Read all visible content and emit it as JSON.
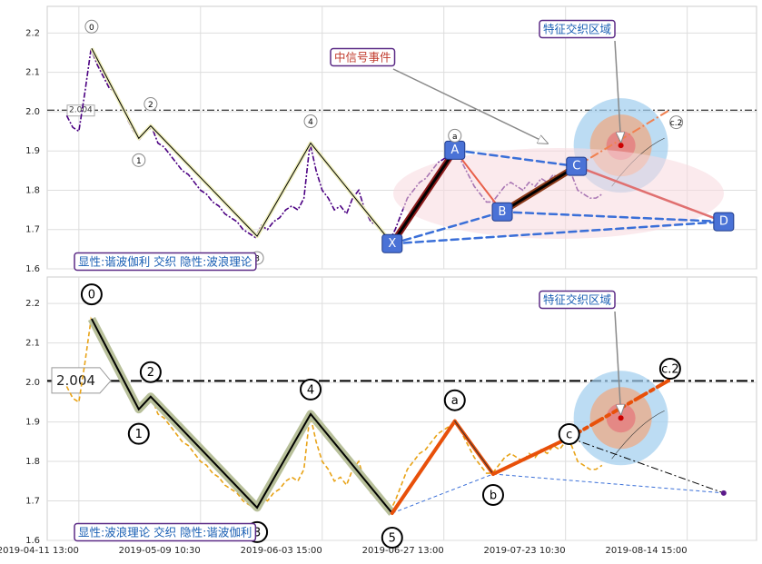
{
  "chart_data": [
    {
      "type": "line",
      "xlim": [
        -5.2,
        111.4
      ],
      "ylim": [
        1.6,
        2.268
      ],
      "yticks": [
        1.6,
        1.7,
        1.8,
        1.9,
        {
          "value": 2,
          "label": "2.0"
        },
        2.1,
        2.2
      ],
      "grid": true,
      "reference_line": {
        "value": 2.004,
        "label": "2.004"
      },
      "series": [
        {
          "color": "#4b0082",
          "x": [
            -2,
            -1,
            0,
            1,
            2,
            3,
            4,
            5,
            6,
            7,
            8,
            9,
            10,
            11,
            12,
            13,
            14,
            15,
            16,
            17,
            18,
            19,
            20,
            21,
            22,
            23,
            24,
            25,
            26,
            27,
            28,
            29,
            30,
            31,
            32,
            33,
            34,
            35,
            36,
            37,
            38,
            39,
            40,
            41,
            42,
            43,
            44,
            45,
            46,
            47,
            48,
            49,
            50,
            51,
            52,
            53,
            54,
            55,
            56,
            57,
            58,
            59,
            60,
            61,
            62,
            63,
            64,
            65,
            66,
            67,
            68,
            69,
            70,
            71,
            72,
            73,
            74,
            75,
            76,
            77,
            78,
            79,
            80,
            81,
            82,
            83,
            84,
            85,
            86
          ],
          "values": [
            1.99,
            1.96,
            1.95,
            2.05,
            2.16,
            2.12,
            2.09,
            2.06,
            2.05,
            2.02,
            1.98,
            1.95,
            1.93,
            1.95,
            1.96,
            1.92,
            1.91,
            1.89,
            1.87,
            1.85,
            1.84,
            1.82,
            1.8,
            1.79,
            1.77,
            1.76,
            1.74,
            1.73,
            1.72,
            1.7,
            1.69,
            1.68,
            1.71,
            1.7,
            1.72,
            1.73,
            1.75,
            1.76,
            1.75,
            1.78,
            1.92,
            1.85,
            1.8,
            1.78,
            1.75,
            1.76,
            1.74,
            1.78,
            1.8,
            1.75,
            1.72,
            1.71,
            1.69,
            1.67,
            1.7,
            1.74,
            1.78,
            1.8,
            1.82,
            1.83,
            1.85,
            1.87,
            1.88,
            1.89,
            1.9,
            1.87,
            1.84,
            1.81,
            1.79,
            1.77,
            1.77,
            1.79,
            1.81,
            1.82,
            1.81,
            1.8,
            1.82,
            1.81,
            1.83,
            1.82,
            1.84,
            1.83,
            1.85,
            1.84,
            1.8,
            1.79,
            1.78,
            1.78,
            1.79
          ]
        }
      ],
      "wave": {
        "color": "#000000",
        "x": [
          2.1,
          9.85,
          11.8,
          29.3,
          38.1,
          51.5
        ],
        "values": [
          2.161,
          1.932,
          1.964,
          1.683,
          1.92,
          1.664
        ],
        "labels": [
          "0",
          "1",
          "2",
          "3",
          "4",
          null
        ]
      },
      "harmonic": {
        "x": [
          51.5,
          61.8,
          69.6,
          81.8,
          106
        ],
        "values": [
          1.664,
          1.902,
          1.745,
          1.861,
          1.72
        ],
        "labels": [
          "X",
          "A",
          "B",
          "C",
          "D"
        ]
      },
      "subwave": {
        "x": [
          61.8,
          98.2
        ],
        "values": [
          1.902,
          1.98
        ],
        "labels": [
          "a",
          "c.2"
        ]
      },
      "focus": {
        "x": 89.1,
        "y": 1.914
      },
      "annotations": [
        "显性:谐波伽利 交织 隐性:波浪理论",
        "中信号事件",
        "特征交织区域"
      ]
    },
    {
      "type": "line",
      "xlim": [
        -5.2,
        111.4
      ],
      "ylim": [
        1.6,
        2.267
      ],
      "yticks": [
        1.6,
        1.7,
        1.8,
        1.9,
        {
          "value": 2,
          "label": "2.0"
        },
        2.1,
        2.2
      ],
      "grid": true,
      "xticks": [
        {
          "value": 0,
          "label": "2019-04-11 13:00"
        },
        {
          "value": 20,
          "label": "2019-05-09 10:30"
        },
        {
          "value": 40,
          "label": "2019-06-03 15:00"
        },
        {
          "value": 60,
          "label": "2019-06-27 13:00"
        },
        {
          "value": 80,
          "label": "2019-07-23 10:30"
        },
        {
          "value": 100,
          "label": "2019-08-14 15:00"
        }
      ],
      "reference_line": {
        "value": 2.004,
        "label": "2.004"
      },
      "series": [
        {
          "color": "#e8a317",
          "x": [
            -2,
            -1,
            0,
            1,
            2,
            3,
            4,
            5,
            6,
            7,
            8,
            9,
            10,
            11,
            12,
            13,
            14,
            15,
            16,
            17,
            18,
            19,
            20,
            21,
            22,
            23,
            24,
            25,
            26,
            27,
            28,
            29,
            30,
            31,
            32,
            33,
            34,
            35,
            36,
            37,
            38,
            39,
            40,
            41,
            42,
            43,
            44,
            45,
            46,
            47,
            48,
            49,
            50,
            51,
            52,
            53,
            54,
            55,
            56,
            57,
            58,
            59,
            60,
            61,
            62,
            63,
            64,
            65,
            66,
            67,
            68,
            69,
            70,
            71,
            72,
            73,
            74,
            75,
            76,
            77,
            78,
            79,
            80,
            81,
            82,
            83,
            84,
            85,
            86
          ],
          "values": [
            1.99,
            1.96,
            1.95,
            2.05,
            2.16,
            2.12,
            2.09,
            2.06,
            2.05,
            2.02,
            1.98,
            1.95,
            1.93,
            1.95,
            1.96,
            1.92,
            1.91,
            1.89,
            1.87,
            1.85,
            1.84,
            1.82,
            1.8,
            1.79,
            1.77,
            1.76,
            1.74,
            1.73,
            1.72,
            1.7,
            1.69,
            1.68,
            1.71,
            1.7,
            1.72,
            1.73,
            1.75,
            1.76,
            1.75,
            1.78,
            1.92,
            1.85,
            1.8,
            1.78,
            1.75,
            1.76,
            1.74,
            1.78,
            1.8,
            1.75,
            1.72,
            1.71,
            1.69,
            1.67,
            1.7,
            1.74,
            1.78,
            1.8,
            1.82,
            1.83,
            1.85,
            1.87,
            1.88,
            1.89,
            1.9,
            1.87,
            1.84,
            1.81,
            1.79,
            1.77,
            1.77,
            1.79,
            1.81,
            1.82,
            1.81,
            1.8,
            1.82,
            1.81,
            1.83,
            1.82,
            1.84,
            1.83,
            1.85,
            1.84,
            1.8,
            1.79,
            1.78,
            1.78,
            1.79
          ]
        }
      ],
      "wave": {
        "color": "#000000",
        "x": [
          2.1,
          9.85,
          11.8,
          29.3,
          38.1,
          51.5
        ],
        "values": [
          2.161,
          1.932,
          1.964,
          1.683,
          1.92,
          1.669
        ],
        "labels": [
          "0",
          "1",
          "2",
          "3",
          "4",
          "5"
        ]
      },
      "subwave": {
        "x": [
          61.8,
          68.1,
          80.6,
          97.2
        ],
        "values": [
          1.902,
          1.768,
          1.86,
          2.007
        ],
        "labels": [
          "a",
          "b",
          "c",
          "c.2"
        ]
      },
      "end_point": {
        "x": 106,
        "y": 1.72
      },
      "focus": {
        "x": 89.1,
        "y": 1.91
      },
      "annotations": [
        "显性:波浪理论 交织 隐性:谐波伽利",
        "特征交织区域"
      ]
    }
  ]
}
